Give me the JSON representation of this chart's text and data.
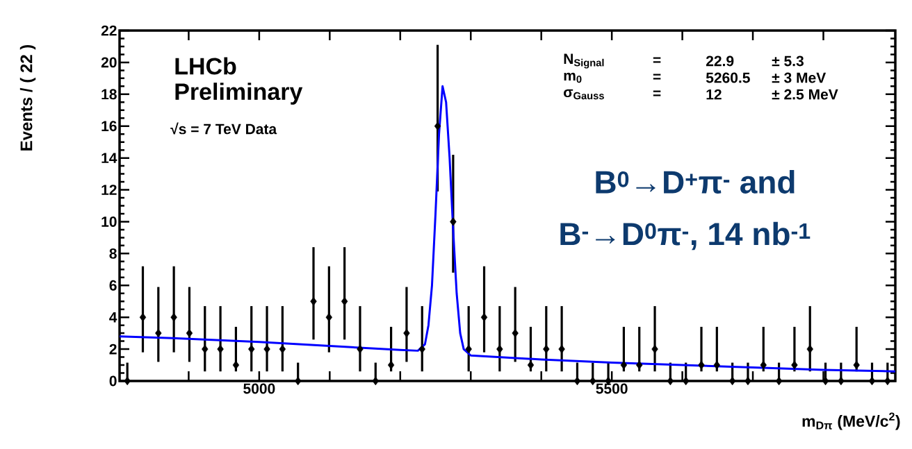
{
  "chart_data": {
    "type": "scatter",
    "xlabel": "m$_{Dπ}$ (MeV/c$^{2}$)",
    "ylabel": "Events / ( 22 )",
    "xlim": [
      4802,
      5902
    ],
    "ylim": [
      0,
      22
    ],
    "xticks": [
      {
        "value": 4900,
        "label": null
      },
      5000,
      {
        "value": 5100,
        "label": null
      },
      {
        "value": 5200,
        "label": null
      },
      {
        "value": 5300,
        "label": null
      },
      {
        "value": 5400,
        "label": null
      },
      5500,
      {
        "value": 5600,
        "label": null
      },
      {
        "value": 5700,
        "label": null
      },
      {
        "value": 5800,
        "label": null
      }
    ],
    "yticks": [
      0,
      2,
      4,
      6,
      8,
      10,
      12,
      14,
      16,
      18,
      20,
      22
    ],
    "series": [
      {
        "marker": "diamond",
        "color": "#000000",
        "x": [
          4813,
          4835,
          4857,
          4879,
          4901,
          4923,
          4945,
          4967,
          4989,
          5011,
          5033,
          5055,
          5077,
          5099,
          5121,
          5143,
          5165,
          5187,
          5209,
          5231,
          5253,
          5275,
          5297,
          5319,
          5341,
          5363,
          5385,
          5407,
          5429,
          5451,
          5473,
          5495,
          5517,
          5539,
          5561,
          5583,
          5605,
          5627,
          5649,
          5671,
          5693,
          5715,
          5737,
          5759,
          5781,
          5803,
          5825,
          5847,
          5869,
          5891
        ],
        "values": [
          0,
          4,
          3,
          4,
          3,
          2,
          2,
          1,
          2,
          2,
          2,
          0,
          5,
          4,
          5,
          2,
          0,
          1,
          3,
          2,
          16,
          10,
          2,
          4,
          2,
          3,
          1,
          2,
          2,
          0,
          0,
          0,
          1,
          1,
          2,
          0,
          0,
          1,
          1,
          0,
          0,
          1,
          0,
          1,
          2,
          0,
          0,
          1,
          0,
          0
        ],
        "errors": [
          [
            0,
            1.15
          ],
          [
            1.8,
            7.2
          ],
          [
            1.2,
            5.9
          ],
          [
            1.8,
            7.2
          ],
          [
            1.2,
            5.9
          ],
          [
            0.6,
            4.7
          ],
          [
            0.6,
            4.7
          ],
          [
            0.6,
            3.4
          ],
          [
            0.6,
            4.7
          ],
          [
            0.6,
            4.7
          ],
          [
            0.6,
            4.7
          ],
          [
            0,
            1.15
          ],
          [
            2.6,
            8.4
          ],
          [
            1.8,
            7.2
          ],
          [
            2.6,
            8.4
          ],
          [
            0.6,
            4.7
          ],
          [
            0,
            1.15
          ],
          [
            0.6,
            3.4
          ],
          [
            1.2,
            5.9
          ],
          [
            0.6,
            4.7
          ],
          [
            11.9,
            21.1
          ],
          [
            6.8,
            14.2
          ],
          [
            0.6,
            4.7
          ],
          [
            1.8,
            7.2
          ],
          [
            0.6,
            4.7
          ],
          [
            1.2,
            5.9
          ],
          [
            0.6,
            3.4
          ],
          [
            0.6,
            4.7
          ],
          [
            0.6,
            4.7
          ],
          [
            0,
            1.15
          ],
          [
            0,
            1.15
          ],
          [
            0,
            1.15
          ],
          [
            0.6,
            3.4
          ],
          [
            0.6,
            3.4
          ],
          [
            0.6,
            4.7
          ],
          [
            0,
            1.15
          ],
          [
            0,
            1.15
          ],
          [
            0.6,
            3.4
          ],
          [
            0.6,
            3.4
          ],
          [
            0,
            1.15
          ],
          [
            0,
            1.15
          ],
          [
            0.6,
            3.4
          ],
          [
            0,
            1.15
          ],
          [
            0.6,
            3.4
          ],
          [
            0.6,
            4.7
          ],
          [
            0,
            1.15
          ],
          [
            0,
            1.15
          ],
          [
            0.6,
            3.4
          ],
          [
            0,
            1.15
          ],
          [
            0,
            1.15
          ]
        ]
      },
      {
        "type": "line",
        "marker": "none",
        "color": "#0000ff",
        "x": [
          4802,
          4900,
          5000,
          5100,
          5200,
          5225,
          5235,
          5240,
          5245,
          5250,
          5255,
          5260,
          5265,
          5270,
          5275,
          5280,
          5285,
          5290,
          5300,
          5400,
          5500,
          5600,
          5700,
          5800,
          5902
        ],
        "values": [
          2.8,
          2.65,
          2.45,
          2.2,
          1.95,
          1.9,
          2.3,
          3.5,
          6,
          10.5,
          15.5,
          18.5,
          17.5,
          14,
          9.5,
          5.5,
          3,
          2,
          1.6,
          1.35,
          1.15,
          1.0,
          0.85,
          0.7,
          0.6
        ]
      }
    ],
    "annotations": [
      "LHCb",
      "Preliminary",
      "√s = 7 TeV Data",
      "N$_{Signal}$",
      "=",
      "22.9",
      "± 5.3",
      "m$_{0}$",
      "=",
      "5260.5",
      "± 3 MeV",
      "σ$_{Gauss}$",
      "=",
      "12",
      "± 2.5 MeV",
      "B$^{0}$→D$^{+}$π$^{-}$ and",
      "B$^{-}$→D$^{0}$π$^{-}$, 14 nb$^{-1}$"
    ]
  }
}
